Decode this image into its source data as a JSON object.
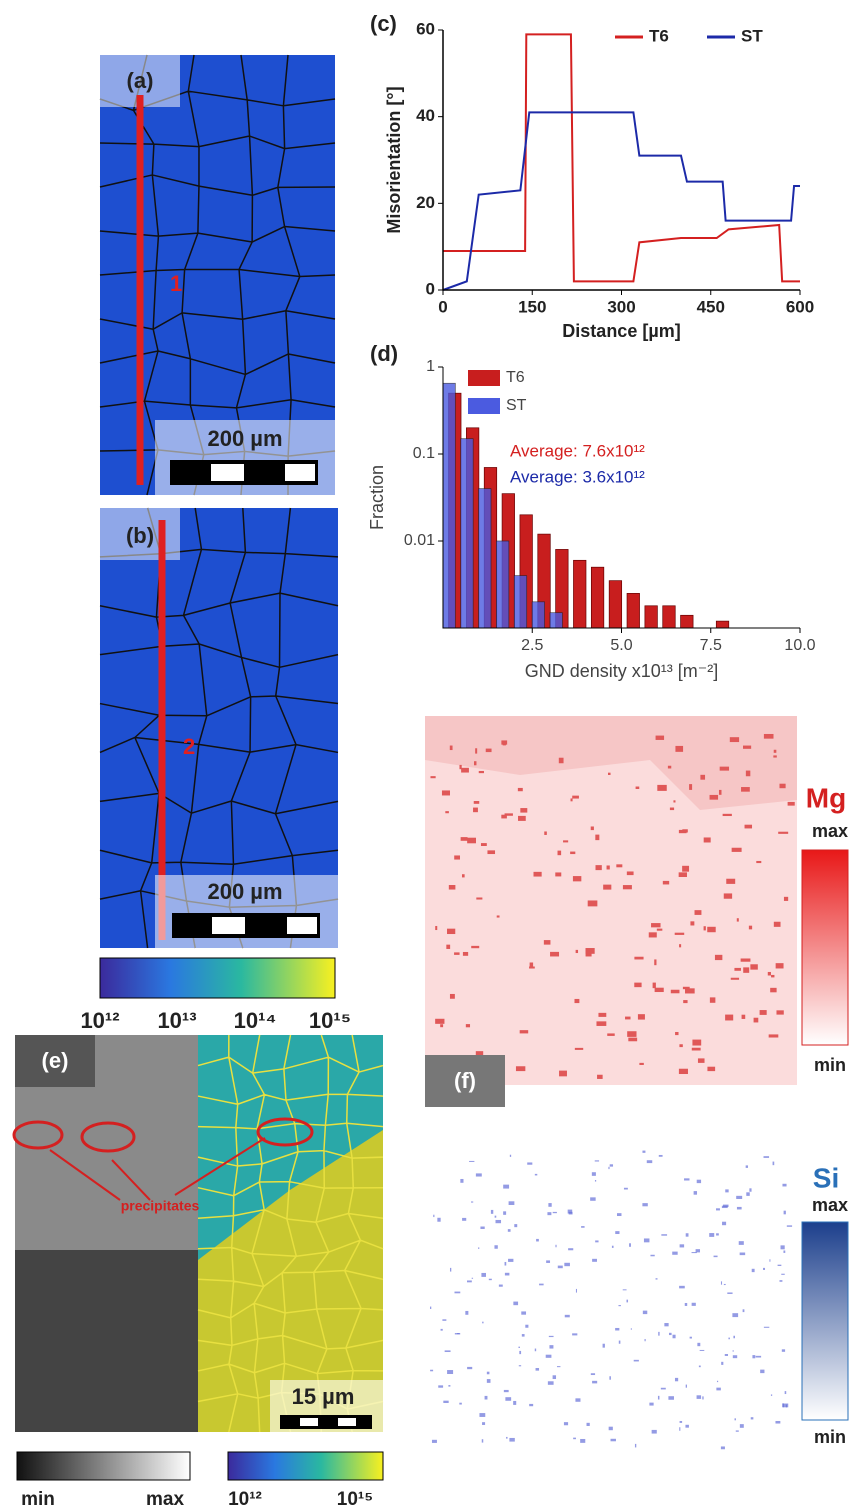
{
  "panels": {
    "a": {
      "label": "(a)",
      "line": "1",
      "scale": "200 µm"
    },
    "b": {
      "label": "(b)",
      "line": "2",
      "scale": "200 µm"
    },
    "colorbar": [
      "10¹²",
      "10¹³",
      "10¹⁴",
      "10¹⁵"
    ],
    "e": {
      "label": "(e)",
      "note": "precipitates",
      "scale": "15 µm",
      "gray_min": "min",
      "gray_max": "max",
      "cb_min": "10¹²",
      "cb_max": "10¹⁵"
    },
    "f": {
      "label": "(f)",
      "mg": "Mg",
      "mg_max": "max",
      "mg_min": "min",
      "si": "Si",
      "si_max": "max",
      "si_min": "min"
    }
  },
  "chart_data": [
    {
      "type": "line",
      "label": "(c)",
      "xlabel": "Distance [µm]",
      "ylabel": "Misorientation [°]",
      "xlim": [
        0,
        600
      ],
      "ylim": [
        0,
        60
      ],
      "xticks": [
        0,
        150,
        300,
        450,
        600
      ],
      "yticks": [
        0,
        20,
        40,
        60
      ],
      "series": [
        {
          "name": "T6",
          "color": "#d42020",
          "x": [
            0,
            138,
            140,
            215,
            220,
            320,
            330,
            400,
            460,
            480,
            565,
            570,
            600
          ],
          "values": [
            9,
            9,
            59,
            59,
            2,
            2,
            11,
            12,
            12,
            14,
            15,
            2,
            2
          ]
        },
        {
          "name": "ST",
          "color": "#1c2aa8",
          "x": [
            0,
            40,
            60,
            130,
            145,
            320,
            330,
            400,
            410,
            470,
            475,
            585,
            590,
            600
          ],
          "values": [
            0,
            2,
            22,
            23,
            41,
            41,
            31,
            31,
            25,
            25,
            16,
            16,
            24,
            24
          ]
        }
      ]
    },
    {
      "type": "bar",
      "label": "(d)",
      "xlabel": "GND density x10¹³ [m⁻²]",
      "ylabel": "Fraction",
      "log_y": true,
      "xlim": [
        0,
        10
      ],
      "ylim": [
        0.001,
        1
      ],
      "xticks": [
        2.5,
        {
          "value": 5,
          "label": "5.0"
        },
        7.5,
        {
          "value": 10,
          "label": "10.0"
        }
      ],
      "yticks": [
        0.01,
        0.1,
        1
      ],
      "annotations": [
        {
          "text": "Average: 7.6x10¹²",
          "color": "#d42020"
        },
        {
          "text": "Average: 3.6x10¹²",
          "color": "#1c2aa8"
        }
      ],
      "series": [
        {
          "name": "T6",
          "color": "#c81e1e",
          "x": [
            0.25,
            0.75,
            1.25,
            1.75,
            2.25,
            2.75,
            3.25,
            3.75,
            4.25,
            4.75,
            5.25,
            5.75,
            6.25,
            6.75,
            7.75
          ],
          "values": [
            0.5,
            0.2,
            0.07,
            0.035,
            0.02,
            0.012,
            0.008,
            0.006,
            0.005,
            0.0035,
            0.0025,
            0.0018,
            0.0018,
            0.0014,
            0.0012
          ]
        },
        {
          "name": "ST",
          "color": "#4b5be0",
          "x": [
            0.25,
            0.75,
            1.25,
            1.75,
            2.25,
            2.75,
            3.25
          ],
          "values": [
            0.65,
            0.15,
            0.04,
            0.01,
            0.004,
            0.002,
            0.0015
          ]
        }
      ]
    }
  ]
}
